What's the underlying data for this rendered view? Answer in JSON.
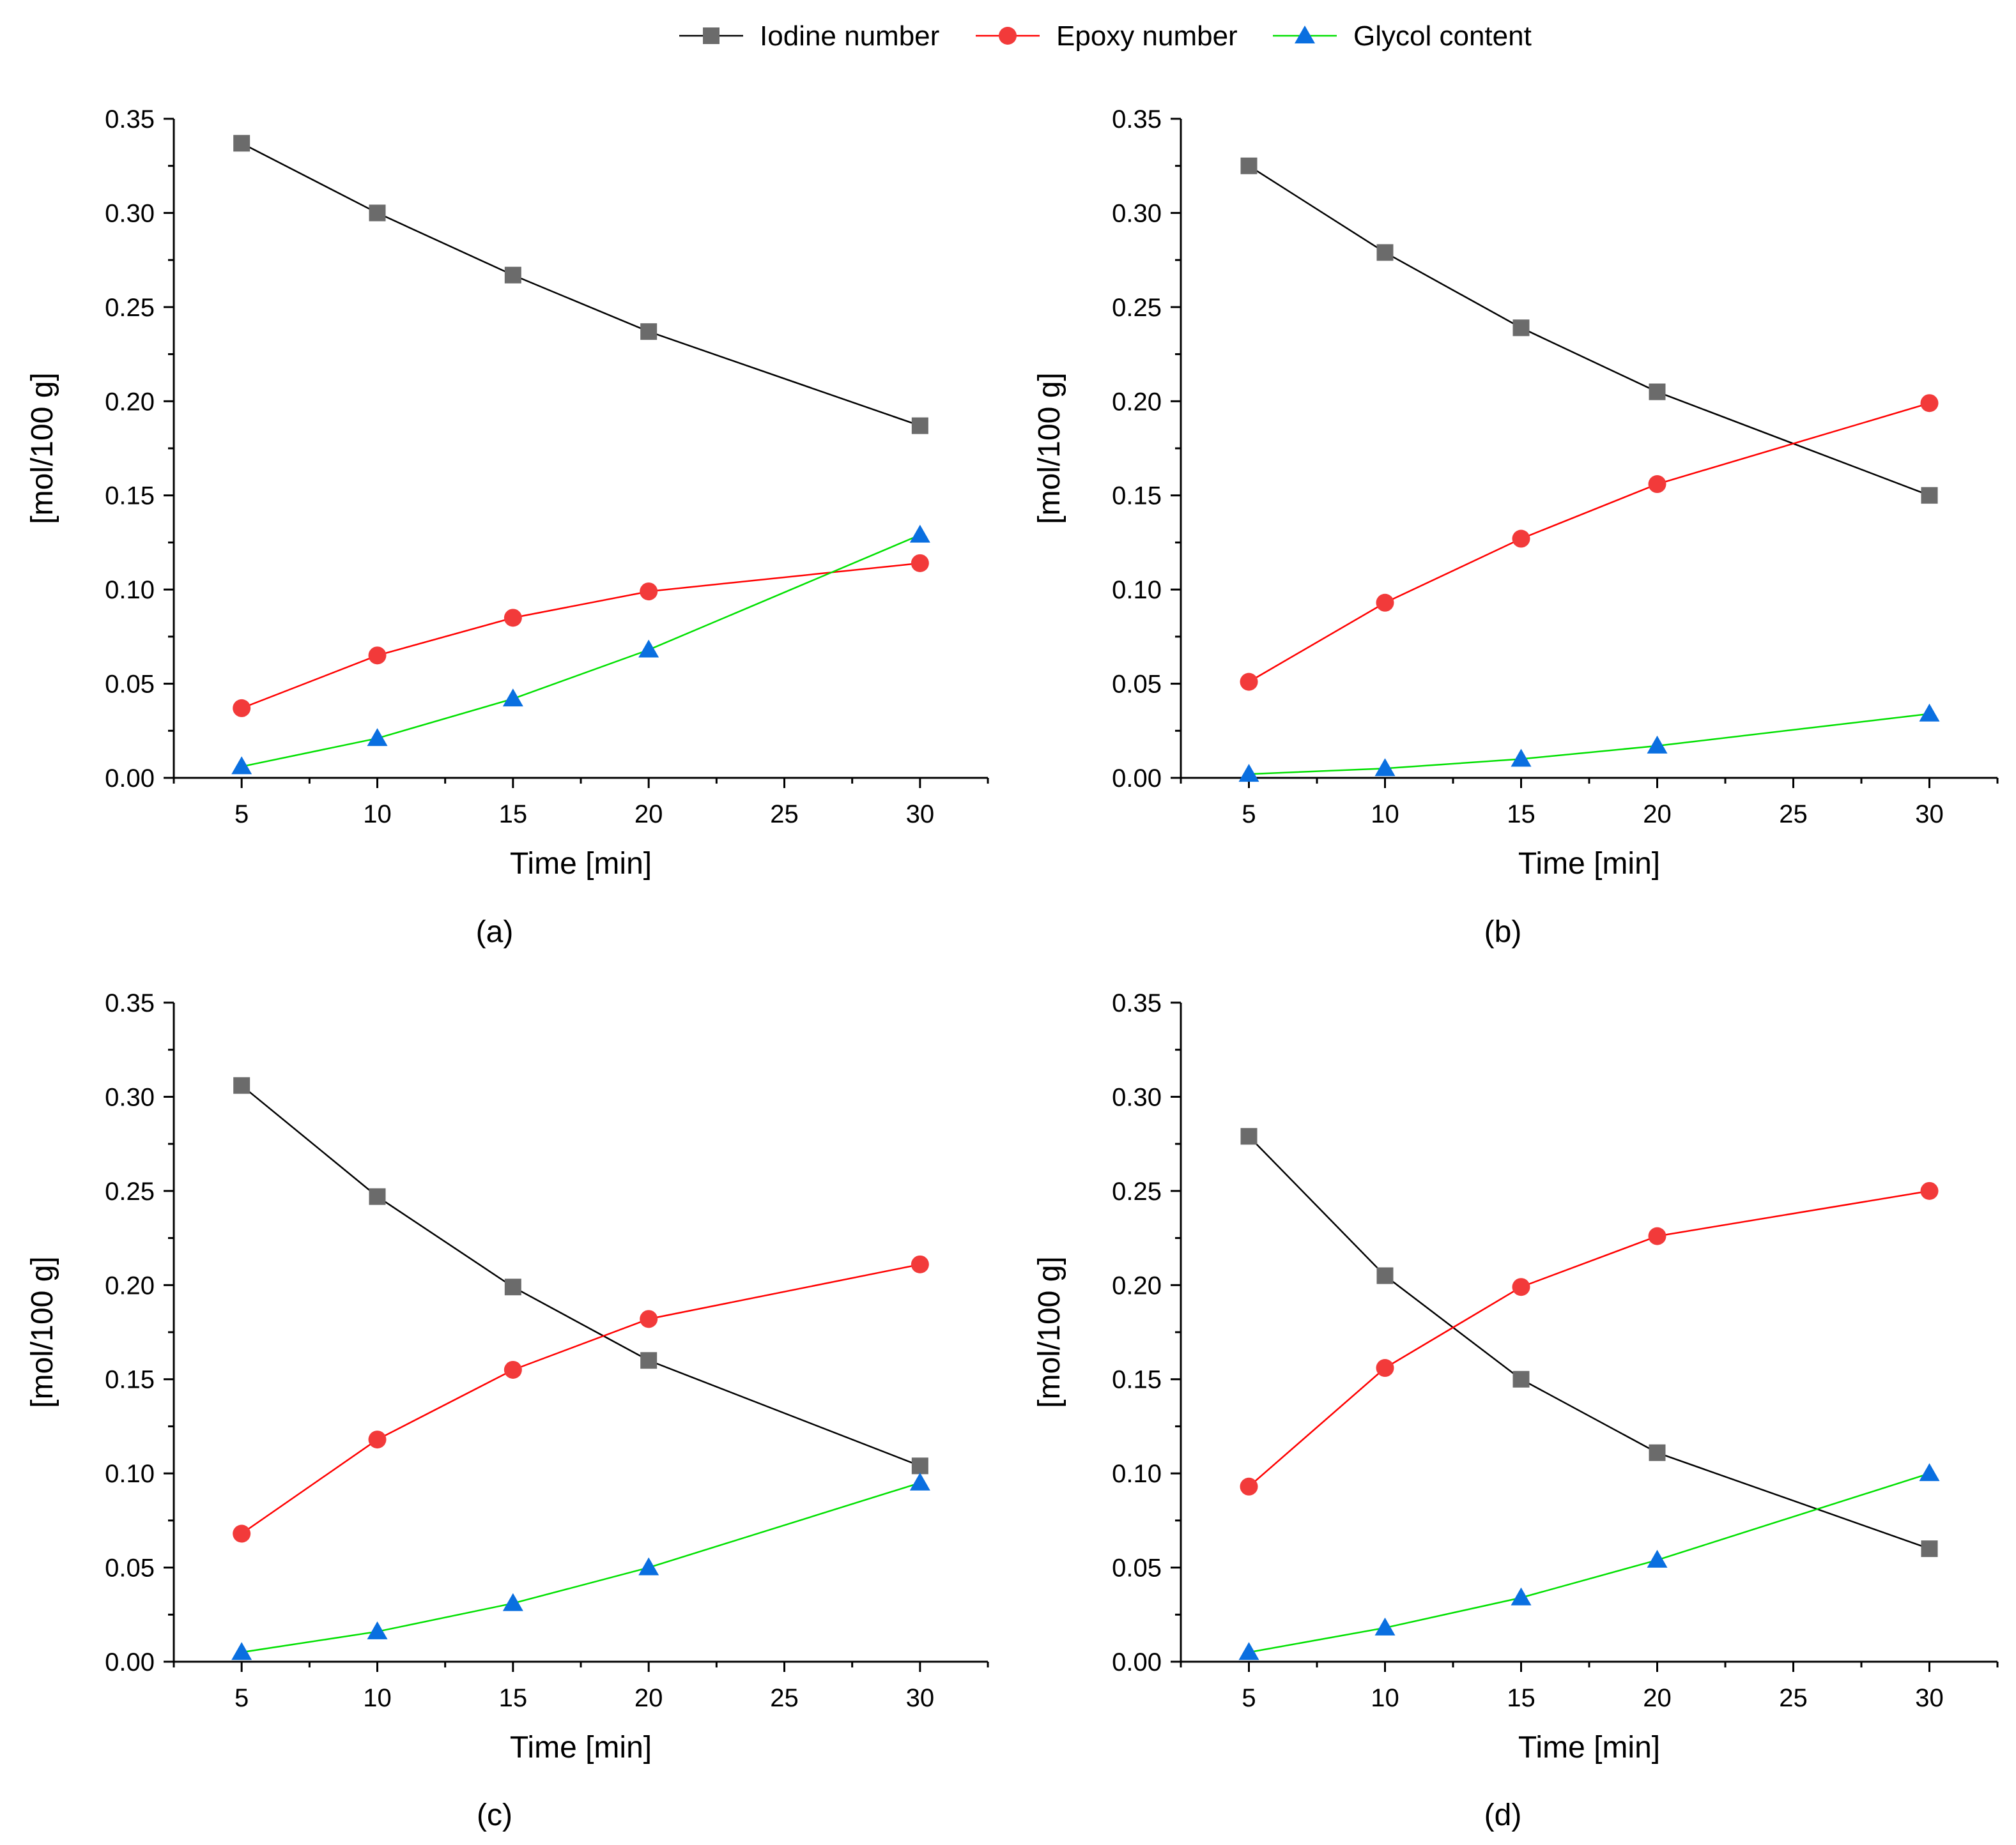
{
  "legend": [
    {
      "name": "Iodine number",
      "color": "#000000",
      "marker_color": "#6b6b6b",
      "marker": "square"
    },
    {
      "name": "Epoxy number",
      "color": "#ff0000",
      "marker_color": "#f23a3a",
      "marker": "circle"
    },
    {
      "name": "Glycol content",
      "color": "#00e000",
      "marker_color": "#0a6fe0",
      "marker": "triangle"
    }
  ],
  "chart_data": [
    {
      "type": "line",
      "panel_label": "(a)",
      "xlabel": "Time [min]",
      "ylabel": "[mol/100 g]",
      "x": [
        5,
        10,
        15,
        20,
        30
      ],
      "xlim": [
        2.5,
        32.5
      ],
      "ylim": [
        0,
        0.35
      ],
      "xticks": [
        5,
        10,
        15,
        20,
        25,
        30
      ],
      "yticks": [
        0.0,
        0.05,
        0.1,
        0.15,
        0.2,
        0.25,
        0.3,
        0.35
      ],
      "series": [
        {
          "name": "Iodine number",
          "values": [
            0.337,
            0.3,
            0.267,
            0.237,
            0.187
          ]
        },
        {
          "name": "Epoxy number",
          "values": [
            0.037,
            0.065,
            0.085,
            0.099,
            0.114
          ]
        },
        {
          "name": "Glycol content",
          "values": [
            0.006,
            0.021,
            0.042,
            0.068,
            0.129
          ]
        }
      ]
    },
    {
      "type": "line",
      "panel_label": "(b)",
      "xlabel": "Time [min]",
      "ylabel": "[mol/100 g]",
      "x": [
        5,
        10,
        15,
        20,
        30
      ],
      "xlim": [
        2.5,
        32.5
      ],
      "ylim": [
        0,
        0.35
      ],
      "xticks": [
        5,
        10,
        15,
        20,
        25,
        30
      ],
      "yticks": [
        0.0,
        0.05,
        0.1,
        0.15,
        0.2,
        0.25,
        0.3,
        0.35
      ],
      "series": [
        {
          "name": "Iodine number",
          "values": [
            0.325,
            0.279,
            0.239,
            0.205,
            0.15
          ]
        },
        {
          "name": "Epoxy number",
          "values": [
            0.051,
            0.093,
            0.127,
            0.156,
            0.199
          ]
        },
        {
          "name": "Glycol content",
          "values": [
            0.002,
            0.005,
            0.01,
            0.017,
            0.034
          ]
        }
      ]
    },
    {
      "type": "line",
      "panel_label": "(c)",
      "xlabel": "Time [min]",
      "ylabel": "[mol/100 g]",
      "x": [
        5,
        10,
        15,
        20,
        30
      ],
      "xlim": [
        2.5,
        32.5
      ],
      "ylim": [
        0,
        0.35
      ],
      "xticks": [
        5,
        10,
        15,
        20,
        25,
        30
      ],
      "yticks": [
        0.0,
        0.05,
        0.1,
        0.15,
        0.2,
        0.25,
        0.3,
        0.35
      ],
      "series": [
        {
          "name": "Iodine number",
          "values": [
            0.306,
            0.247,
            0.199,
            0.16,
            0.104
          ]
        },
        {
          "name": "Epoxy number",
          "values": [
            0.068,
            0.118,
            0.155,
            0.182,
            0.211
          ]
        },
        {
          "name": "Glycol content",
          "values": [
            0.005,
            0.016,
            0.031,
            0.05,
            0.095
          ]
        }
      ]
    },
    {
      "type": "line",
      "panel_label": "(d)",
      "xlabel": "Time [min]",
      "ylabel": "[mol/100 g]",
      "x": [
        5,
        10,
        15,
        20,
        30
      ],
      "xlim": [
        2.5,
        32.5
      ],
      "ylim": [
        0,
        0.35
      ],
      "xticks": [
        5,
        10,
        15,
        20,
        25,
        30
      ],
      "yticks": [
        0.0,
        0.05,
        0.1,
        0.15,
        0.2,
        0.25,
        0.3,
        0.35
      ],
      "series": [
        {
          "name": "Iodine number",
          "values": [
            0.279,
            0.205,
            0.15,
            0.111,
            0.06
          ]
        },
        {
          "name": "Epoxy number",
          "values": [
            0.093,
            0.156,
            0.199,
            0.226,
            0.25
          ]
        },
        {
          "name": "Glycol content",
          "values": [
            0.005,
            0.018,
            0.034,
            0.054,
            0.1
          ]
        }
      ]
    }
  ]
}
